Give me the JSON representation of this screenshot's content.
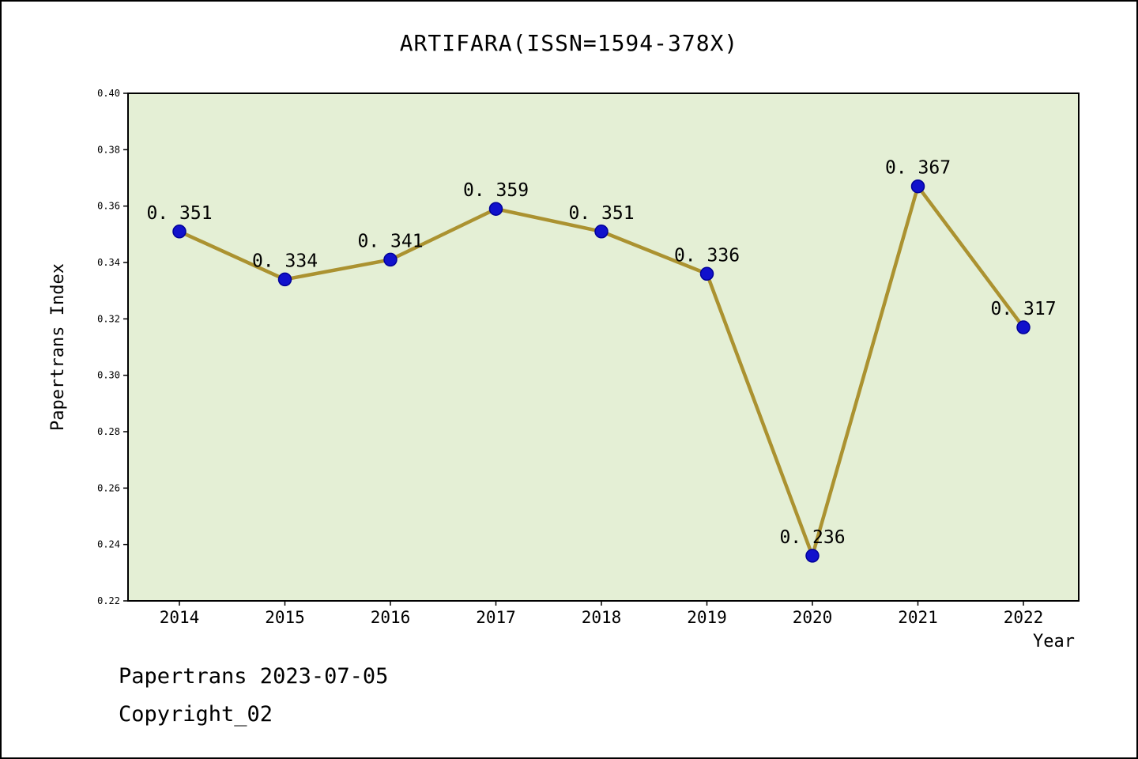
{
  "chart_data": {
    "type": "line",
    "title": "ARTIFARA(ISSN=1594-378X)",
    "xlabel": "Year",
    "ylabel": "Papertrans Index",
    "categories": [
      "2014",
      "2015",
      "2016",
      "2017",
      "2018",
      "2019",
      "2020",
      "2021",
      "2022"
    ],
    "values": [
      0.351,
      0.334,
      0.341,
      0.359,
      0.351,
      0.336,
      0.236,
      0.367,
      0.317
    ],
    "point_labels": [
      "0. 351",
      "0. 334",
      "0. 341",
      "0. 359",
      "0. 351",
      "0. 336",
      "0. 236",
      "0. 367",
      "0. 317"
    ],
    "ylim": [
      0.22,
      0.4
    ],
    "ytick_step": 0.02,
    "ytick_labels": [
      "0.22",
      "0.24",
      "0.26",
      "0.28",
      "0.30",
      "0.32",
      "0.34",
      "0.36",
      "0.38",
      "0.40"
    ],
    "grid": false,
    "legend": "none",
    "colors": {
      "line": "#ab9230",
      "marker_fill": "#1111cc",
      "marker_edge": "#000099",
      "plot_bg": "#e4efd5",
      "axis": "#000000",
      "text": "#000000"
    }
  },
  "footer": {
    "line1": "Papertrans 2023-07-05",
    "line2": "Copyright_02"
  }
}
